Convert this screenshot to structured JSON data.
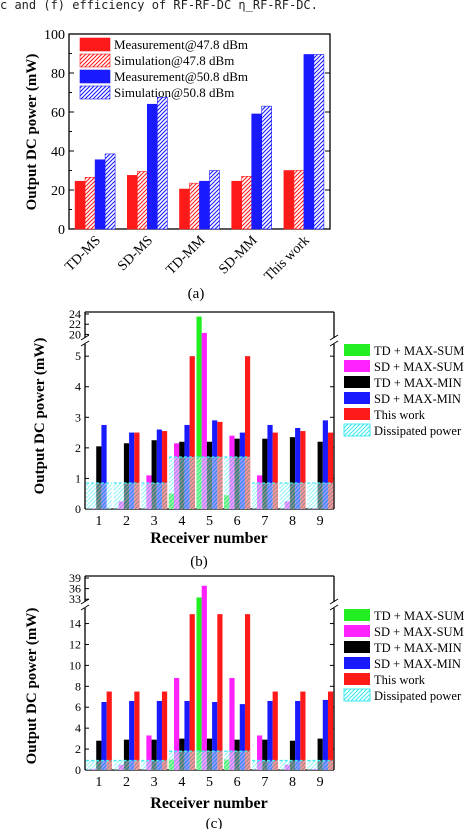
{
  "header_text": "c and (f) efficiency of RF-RF-DC η_RF-RF-DC.",
  "colors": {
    "red": "#ff1a1a",
    "blue": "#1a1aff",
    "green": "#22ee22",
    "magenta": "#ff22ff",
    "black": "#000000",
    "cyan": "#40e8f0"
  },
  "chart_data": [
    {
      "panel": "(a)",
      "type": "bar",
      "ylabel": "Output DC power (mW)",
      "xlabel": "",
      "ylim": [
        0,
        100
      ],
      "yticks": [
        "0",
        "20",
        "40",
        "60",
        "80",
        "100"
      ],
      "categories": [
        "TD-MS",
        "SD-MS",
        "TD-MM",
        "SD-MM",
        "This work"
      ],
      "legend_position": "top-left",
      "series": [
        {
          "name": "Measurement@47.8 dBm",
          "color": "red",
          "pattern": "solid",
          "values": [
            24.5,
            27.5,
            20.5,
            24.5,
            30
          ]
        },
        {
          "name": "Simulation@47.8 dBm",
          "color": "red",
          "pattern": "hatch",
          "values": [
            26.5,
            29.5,
            23.5,
            27,
            30
          ]
        },
        {
          "name": "Measurement@50.8 dBm",
          "color": "blue",
          "pattern": "solid",
          "values": [
            35.5,
            64,
            24.5,
            59,
            89.5
          ]
        },
        {
          "name": "Simulation@50.8 dBm",
          "color": "blue",
          "pattern": "hatch",
          "values": [
            38.5,
            67.5,
            30,
            63,
            89.5
          ]
        }
      ]
    },
    {
      "panel": "(b)",
      "type": "bar",
      "ylabel": "Output DC power (mW)",
      "xlabel": "Receiver number",
      "categories": [
        "1",
        "2",
        "3",
        "4",
        "5",
        "6",
        "7",
        "8",
        "9"
      ],
      "yticks_lower": [
        "0",
        "1",
        "2",
        "3",
        "4",
        "5"
      ],
      "yticks_upper": [
        "20",
        "22",
        "24"
      ],
      "ylim_lower": [
        0,
        5.3
      ],
      "ylim_upper": [
        19.5,
        24
      ],
      "legend_position": "right",
      "series": [
        {
          "name": "TD + MAX-SUM",
          "color": "green",
          "pattern": "solid",
          "values": [
            0,
            0,
            0,
            0.5,
            23.5,
            0.45,
            0,
            0,
            0
          ]
        },
        {
          "name": "SD + MAX-SUM",
          "color": "magenta",
          "pattern": "solid",
          "values": [
            0.02,
            0.25,
            1.1,
            2.15,
            20.3,
            2.4,
            1.1,
            0.25,
            0.02
          ]
        },
        {
          "name": "TD + MAX-MIN",
          "color": "black",
          "pattern": "solid",
          "values": [
            2.05,
            2.15,
            2.25,
            2.2,
            2.2,
            2.3,
            2.3,
            2.35,
            2.2
          ]
        },
        {
          "name": "SD + MAX-MIN",
          "color": "blue",
          "pattern": "solid",
          "values": [
            2.75,
            2.5,
            2.6,
            2.75,
            2.9,
            2.5,
            2.75,
            2.65,
            2.9
          ]
        },
        {
          "name": "This work",
          "color": "red",
          "pattern": "solid",
          "values": [
            0,
            2.5,
            2.55,
            5.0,
            2.85,
            5.0,
            2.5,
            2.55,
            2.5
          ]
        },
        {
          "name": "Dissipated power",
          "color": "cyan",
          "pattern": "hatch",
          "values": [
            0.85,
            0.85,
            0.85,
            1.7,
            1.7,
            1.7,
            0.85,
            0.85,
            0.85
          ]
        }
      ]
    },
    {
      "panel": "(c)",
      "type": "bar",
      "ylabel": "Output DC power (mW)",
      "xlabel": "Receiver number",
      "categories": [
        "1",
        "2",
        "3",
        "4",
        "5",
        "6",
        "7",
        "8",
        "9"
      ],
      "yticks_lower": [
        "0",
        "2",
        "4",
        "6",
        "8",
        "10",
        "12",
        "14"
      ],
      "yticks_upper": [
        "33",
        "36",
        "39"
      ],
      "ylim_lower": [
        0,
        15.2
      ],
      "ylim_upper": [
        32.5,
        39
      ],
      "legend_position": "right",
      "series": [
        {
          "name": "TD + MAX-SUM",
          "color": "green",
          "pattern": "solid",
          "values": [
            0,
            0,
            0,
            1.0,
            33.5,
            1.0,
            0,
            0,
            0
          ]
        },
        {
          "name": "SD + MAX-SUM",
          "color": "magenta",
          "pattern": "solid",
          "values": [
            0.1,
            0.5,
            3.3,
            8.8,
            36.8,
            8.8,
            3.3,
            0.5,
            0.1
          ]
        },
        {
          "name": "TD + MAX-MIN",
          "color": "black",
          "pattern": "solid",
          "values": [
            2.8,
            2.9,
            2.9,
            3.0,
            3.0,
            2.9,
            2.9,
            2.8,
            3.0
          ]
        },
        {
          "name": "SD + MAX-MIN",
          "color": "blue",
          "pattern": "solid",
          "values": [
            6.5,
            6.6,
            6.6,
            6.6,
            6.5,
            6.3,
            6.6,
            6.6,
            6.7
          ]
        },
        {
          "name": "This work",
          "color": "red",
          "pattern": "solid",
          "values": [
            7.5,
            7.5,
            7.5,
            14.9,
            14.9,
            14.9,
            7.5,
            7.5,
            7.5
          ]
        },
        {
          "name": "Dissipated power",
          "color": "cyan",
          "pattern": "hatch",
          "values": [
            0.9,
            0.9,
            0.9,
            1.8,
            1.8,
            1.8,
            0.9,
            0.9,
            0.9
          ]
        }
      ]
    }
  ]
}
